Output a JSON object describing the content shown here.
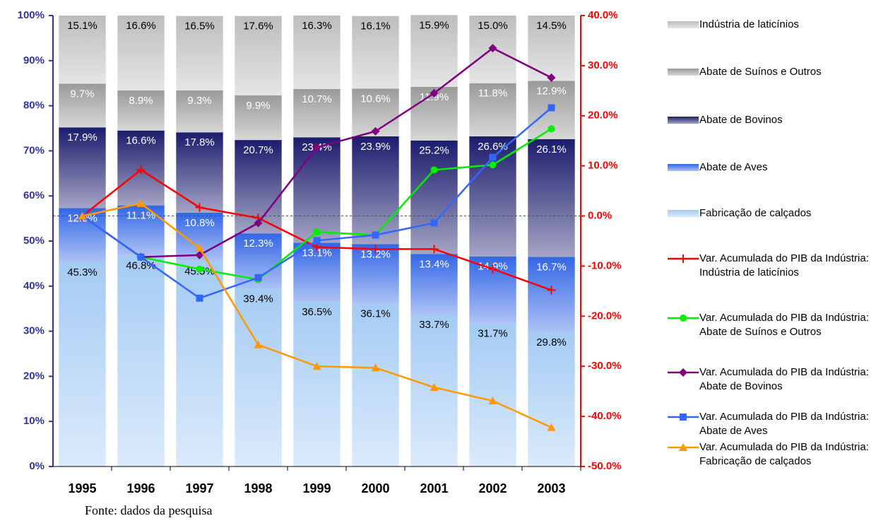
{
  "chart_data": {
    "type": "bar",
    "stacked": true,
    "categories": [
      "1995",
      "1996",
      "1997",
      "1998",
      "1999",
      "2000",
      "2001",
      "2002",
      "2003"
    ],
    "series": [
      {
        "name": "Fabricação de calçados",
        "type": "bar",
        "color": "#a4cbf4",
        "label_color": "#000000",
        "values": [
          45.3,
          46.8,
          45.5,
          39.4,
          36.5,
          36.1,
          33.7,
          31.7,
          29.8
        ],
        "value_labels": [
          "45.3%",
          "46.8%",
          "45.5%",
          "39.4%",
          "36.5%",
          "36.1%",
          "33.7%",
          "31.7%",
          "29.8%"
        ]
      },
      {
        "name": "Abate de Aves",
        "type": "bar",
        "color": "#3366e6",
        "label_color": "#ffffff",
        "values": [
          12.0,
          11.1,
          10.8,
          12.3,
          13.1,
          13.2,
          13.4,
          14.9,
          16.7
        ],
        "value_labels": [
          "12.0%",
          "11.1%",
          "10.8%",
          "12.3%",
          "13.1%",
          "13.2%",
          "13.4%",
          "14.9%",
          "16.7%"
        ]
      },
      {
        "name": "Abate de Bovinos",
        "type": "bar",
        "color": "#1c1c6e",
        "label_color": "#ffffff",
        "values": [
          17.9,
          16.6,
          17.8,
          20.7,
          23.4,
          23.9,
          25.2,
          26.6,
          26.1
        ],
        "value_labels": [
          "17.9%",
          "16.6%",
          "17.8%",
          "20.7%",
          "23.4%",
          "23.9%",
          "25.2%",
          "26.6%",
          "26.1%"
        ]
      },
      {
        "name": "Abate de Suínos e Outros",
        "type": "bar",
        "color": "#9a9a9a",
        "label_color": "#ffffff",
        "values": [
          9.7,
          8.9,
          9.3,
          9.9,
          10.7,
          10.6,
          11.9,
          11.8,
          12.9
        ],
        "value_labels": [
          "9.7%",
          "8.9%",
          "9.3%",
          "9.9%",
          "10.7%",
          "10.6%",
          "11.9%",
          "11.8%",
          "12.9%"
        ]
      },
      {
        "name": "Indústria de laticínios",
        "type": "bar",
        "color": "#bdbdbd",
        "label_color": "#000000",
        "values": [
          15.1,
          16.6,
          16.5,
          17.6,
          16.3,
          16.1,
          15.9,
          15.0,
          14.5
        ],
        "value_labels": [
          "15.1%",
          "16.6%",
          "16.5%",
          "17.6%",
          "16.3%",
          "16.1%",
          "15.9%",
          "15.0%",
          "14.5%"
        ]
      },
      {
        "name": "Var. Acumulada do PIB da Indústria: Indústria de laticínios",
        "type": "line",
        "axis": "y2",
        "color": "#ff0000",
        "marker": "plus",
        "values": [
          0.0,
          9.2,
          1.7,
          -0.4,
          -6.2,
          -6.6,
          -6.6,
          -10.6,
          -14.8
        ]
      },
      {
        "name": "Var. Acumulada do PIB da Indústria: Abate de Suínos e Outros",
        "type": "line",
        "axis": "y2",
        "color": "#00ee00",
        "marker": "circle",
        "values": [
          0.0,
          -8.2,
          -10.6,
          -12.7,
          -3.2,
          -3.8,
          9.2,
          10.2,
          17.4
        ]
      },
      {
        "name": "Var. Acumulada do PIB da Indústria: Abate de Bovinos",
        "type": "line",
        "axis": "y2",
        "color": "#800080",
        "marker": "diamond",
        "values": [
          0.0,
          -8.2,
          -7.8,
          -1.4,
          13.7,
          16.9,
          24.5,
          33.5,
          27.6
        ]
      },
      {
        "name": "Var. Acumulada do PIB da Indústria: Abate de Aves",
        "type": "line",
        "axis": "y2",
        "color": "#3366ff",
        "marker": "square",
        "values": [
          0.0,
          -8.2,
          -16.4,
          -12.3,
          -4.9,
          -3.8,
          -1.4,
          11.7,
          21.6
        ]
      },
      {
        "name": "Var. Acumulada do PIB da Indústria: Fabricação de calçados",
        "type": "line",
        "axis": "y2",
        "color": "#ff9900",
        "marker": "triangle",
        "values": [
          0.0,
          2.5,
          -6.4,
          -25.7,
          -30.0,
          -30.3,
          -34.2,
          -36.9,
          -42.2
        ]
      }
    ],
    "ylim": [
      0,
      100
    ],
    "yticks": [
      {
        "value": 0,
        "label": "0%"
      },
      {
        "value": 10,
        "label": "10%"
      },
      {
        "value": 20,
        "label": "20%"
      },
      {
        "value": 30,
        "label": "30%"
      },
      {
        "value": 40,
        "label": "40%"
      },
      {
        "value": 50,
        "label": "50%"
      },
      {
        "value": 60,
        "label": "60%"
      },
      {
        "value": 70,
        "label": "70%"
      },
      {
        "value": 80,
        "label": "80%"
      },
      {
        "value": 90,
        "label": "90%"
      },
      {
        "value": 100,
        "label": "100%"
      }
    ],
    "y_axis_color": "#333399",
    "y2lim": [
      -50,
      40
    ],
    "y2ticks": [
      {
        "value": -50,
        "label": "-50.0%"
      },
      {
        "value": -40,
        "label": "-40.0%"
      },
      {
        "value": -30,
        "label": "-30.0%"
      },
      {
        "value": -20,
        "label": "-20.0%"
      },
      {
        "value": -10,
        "label": "-10.0%"
      },
      {
        "value": 0,
        "label": "0.0%"
      },
      {
        "value": 10,
        "label": "10.0%"
      },
      {
        "value": 20,
        "label": "20.0%"
      },
      {
        "value": 30,
        "label": "30.0%"
      },
      {
        "value": 40,
        "label": "40.0%"
      }
    ],
    "y2_axis_color": "#ff0000",
    "y2_zero_line": true,
    "legend": "right",
    "source": "Fonte: dados da pesquisa"
  }
}
